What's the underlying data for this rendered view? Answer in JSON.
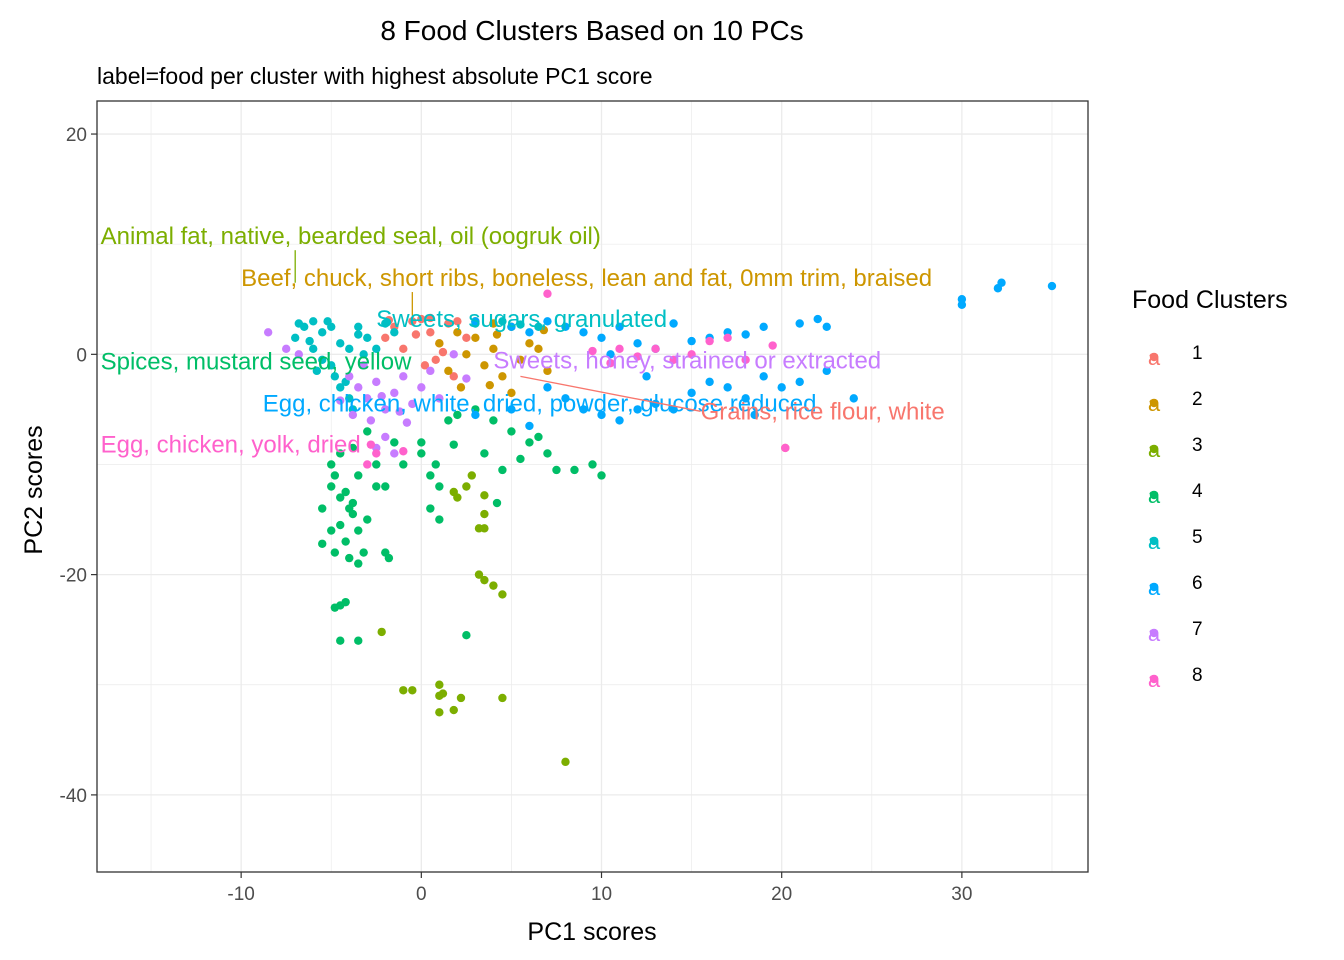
{
  "chart_data": {
    "type": "scatter",
    "title": "8 Food Clusters Based on 10 PCs",
    "subtitle": "label=food per cluster with highest absolute PC1 score",
    "xlabel": "PC1 scores",
    "ylabel": "PC2 scores",
    "xlim": [
      -18,
      37
    ],
    "ylim": [
      -47,
      23
    ],
    "x_ticks": [
      -10,
      0,
      10,
      20,
      30
    ],
    "y_ticks": [
      -40,
      -20,
      0,
      20
    ],
    "x_tick_labels": [
      "-10",
      "0",
      "10",
      "20",
      "30"
    ],
    "y_tick_labels": [
      "-40",
      "-20",
      "0",
      "20"
    ],
    "grid": true,
    "legend": {
      "title": "Food Clusters",
      "position": "right",
      "glyph": "a",
      "entries": [
        "1",
        "2",
        "3",
        "4",
        "5",
        "6",
        "7",
        "8"
      ]
    },
    "colors": {
      "1": "#F8766D",
      "2": "#CD9600",
      "3": "#7CAE00",
      "4": "#00BE67",
      "5": "#00BFC4",
      "6": "#00A9FF",
      "7": "#C77CFF",
      "8": "#FF61CC"
    },
    "series": [
      {
        "name": "1",
        "points": [
          [
            -1.5,
            2.5
          ],
          [
            -0.5,
            3.0
          ],
          [
            0.5,
            2.0
          ],
          [
            1.0,
            1.0
          ],
          [
            -2.0,
            1.5
          ],
          [
            0.0,
            3.2
          ],
          [
            1.5,
            2.8
          ],
          [
            -1.0,
            0.5
          ],
          [
            0.8,
            -0.5
          ],
          [
            2.0,
            3.0
          ],
          [
            -0.3,
            1.8
          ],
          [
            1.2,
            0.2
          ],
          [
            0.2,
            -1.0
          ],
          [
            -1.8,
            3.1
          ],
          [
            2.5,
            1.5
          ],
          [
            20.2,
            -8.5
          ],
          [
            1.8,
            -2.0
          ],
          [
            0.5,
            3.3
          ]
        ]
      },
      {
        "name": "2",
        "points": [
          [
            1.0,
            1.0
          ],
          [
            2.0,
            2.0
          ],
          [
            3.0,
            1.5
          ],
          [
            4.0,
            0.5
          ],
          [
            5.0,
            2.5
          ],
          [
            6.0,
            1.0
          ],
          [
            3.5,
            -1.0
          ],
          [
            4.5,
            -2.0
          ],
          [
            2.5,
            0.0
          ],
          [
            5.5,
            -0.5
          ],
          [
            6.5,
            0.5
          ],
          [
            3.0,
            3.0
          ],
          [
            4.0,
            2.8
          ],
          [
            1.5,
            -1.5
          ],
          [
            2.2,
            -3.0
          ],
          [
            7.0,
            -1.5
          ],
          [
            5.0,
            -3.5
          ],
          [
            4.2,
            1.8
          ],
          [
            6.8,
            2.2
          ],
          [
            3.8,
            -2.8
          ]
        ]
      },
      {
        "name": "3",
        "points": [
          [
            3.5,
            -14.5
          ],
          [
            3.2,
            -15.8
          ],
          [
            3.5,
            -15.8
          ],
          [
            3.5,
            -20.5
          ],
          [
            4.0,
            -21.0
          ],
          [
            4.5,
            -21.8
          ],
          [
            3.2,
            -20.0
          ],
          [
            2.5,
            -12.0
          ],
          [
            2.0,
            -13.0
          ],
          [
            1.8,
            -12.5
          ],
          [
            3.5,
            -12.8
          ],
          [
            -1.0,
            -30.5
          ],
          [
            -0.5,
            -30.5
          ],
          [
            1.0,
            -30.0
          ],
          [
            1.2,
            -30.8
          ],
          [
            2.2,
            -31.2
          ],
          [
            4.5,
            -31.2
          ],
          [
            1.0,
            -32.5
          ],
          [
            1.8,
            -32.3
          ],
          [
            8.0,
            -37.0
          ],
          [
            -2.2,
            -25.2
          ],
          [
            1.0,
            -31.0
          ],
          [
            2.8,
            -11.0
          ]
        ]
      },
      {
        "name": "4",
        "points": [
          [
            -4.5,
            -13.0
          ],
          [
            -4.2,
            -12.5
          ],
          [
            -4.0,
            -14.0
          ],
          [
            -3.8,
            -13.5
          ],
          [
            -4.5,
            -15.5
          ],
          [
            -5.0,
            -16.0
          ],
          [
            -4.2,
            -17.0
          ],
          [
            -5.5,
            -17.2
          ],
          [
            -4.8,
            -18.0
          ],
          [
            -4.0,
            -18.5
          ],
          [
            -3.5,
            -19.0
          ],
          [
            -4.5,
            -22.8
          ],
          [
            -4.8,
            -23.0
          ],
          [
            -4.2,
            -22.5
          ],
          [
            -4.5,
            -26.0
          ],
          [
            -3.5,
            -26.0
          ],
          [
            -3.2,
            -18.0
          ],
          [
            -2.0,
            -18.0
          ],
          [
            -1.8,
            -18.5
          ],
          [
            -3.8,
            -14.5
          ],
          [
            -3.5,
            -16.0
          ],
          [
            -5.0,
            -12.0
          ],
          [
            -4.8,
            -11.0
          ],
          [
            -5.0,
            -10.0
          ],
          [
            -4.5,
            -9.0
          ],
          [
            -3.8,
            -8.5
          ],
          [
            -3.0,
            -7.0
          ],
          [
            -2.5,
            -10.0
          ],
          [
            -2.0,
            -12.0
          ],
          [
            -1.0,
            -10.0
          ],
          [
            0.0,
            -9.0
          ],
          [
            0.5,
            -11.0
          ],
          [
            1.0,
            -12.0
          ],
          [
            0.5,
            -14.0
          ],
          [
            1.0,
            -15.0
          ],
          [
            0.0,
            -8.0
          ],
          [
            1.5,
            -6.0
          ],
          [
            2.0,
            -5.5
          ],
          [
            3.0,
            -5.0
          ],
          [
            4.0,
            -6.0
          ],
          [
            5.0,
            -7.0
          ],
          [
            6.0,
            -8.0
          ],
          [
            7.0,
            -9.0
          ],
          [
            6.5,
            -7.5
          ],
          [
            5.5,
            -9.5
          ],
          [
            4.5,
            -10.5
          ],
          [
            4.2,
            -13.5
          ],
          [
            2.5,
            -25.5
          ],
          [
            8.5,
            -10.5
          ],
          [
            9.5,
            -10.0
          ],
          [
            10.0,
            -11.0
          ],
          [
            7.5,
            -10.5
          ],
          [
            -1.5,
            -8.0
          ],
          [
            -2.5,
            -12.0
          ],
          [
            -3.5,
            -11.0
          ],
          [
            -5.5,
            -14.0
          ],
          [
            -3.0,
            -15.0
          ],
          [
            0.8,
            -10.0
          ],
          [
            1.8,
            -8.2
          ],
          [
            3.5,
            -9.0
          ]
        ]
      },
      {
        "name": "5",
        "points": [
          [
            -6.5,
            2.5
          ],
          [
            -6.0,
            3.0
          ],
          [
            -5.5,
            2.0
          ],
          [
            -5.0,
            2.5
          ],
          [
            -4.5,
            1.0
          ],
          [
            -4.0,
            0.5
          ],
          [
            -3.5,
            2.5
          ],
          [
            -3.0,
            1.5
          ],
          [
            -2.5,
            0.5
          ],
          [
            -6.0,
            0.5
          ],
          [
            -5.5,
            -0.5
          ],
          [
            -5.0,
            -1.0
          ],
          [
            -4.8,
            -2.0
          ],
          [
            -4.5,
            -3.0
          ],
          [
            -4.0,
            -4.0
          ],
          [
            -3.8,
            -5.0
          ],
          [
            -3.5,
            1.8
          ],
          [
            -6.2,
            1.2
          ],
          [
            -5.8,
            -1.5
          ],
          [
            -2.0,
            2.8
          ],
          [
            -1.5,
            2.0
          ],
          [
            -7.0,
            1.5
          ],
          [
            -6.8,
            2.8
          ],
          [
            -4.2,
            -2.5
          ],
          [
            -5.2,
            3.0
          ],
          [
            -3.2,
            0.0
          ],
          [
            3.0,
            2.8
          ],
          [
            4.5,
            3.0
          ],
          [
            5.5,
            2.7
          ],
          [
            6.5,
            2.5
          ]
        ]
      },
      {
        "name": "6",
        "points": [
          [
            3.0,
            3.0
          ],
          [
            5.0,
            2.5
          ],
          [
            6.0,
            2.0
          ],
          [
            7.0,
            3.0
          ],
          [
            8.0,
            2.5
          ],
          [
            9.0,
            2.0
          ],
          [
            10.0,
            1.5
          ],
          [
            11.0,
            2.5
          ],
          [
            12.0,
            1.0
          ],
          [
            13.0,
            0.5
          ],
          [
            14.0,
            2.8
          ],
          [
            15.0,
            1.2
          ],
          [
            16.0,
            1.5
          ],
          [
            17.0,
            2.0
          ],
          [
            18.0,
            1.8
          ],
          [
            19.0,
            2.5
          ],
          [
            21.0,
            2.8
          ],
          [
            22.0,
            3.2
          ],
          [
            22.5,
            2.5
          ],
          [
            30.0,
            4.5
          ],
          [
            30.0,
            5.0
          ],
          [
            32.0,
            6.0
          ],
          [
            32.2,
            6.5
          ],
          [
            35.0,
            6.2
          ],
          [
            7.0,
            -3.0
          ],
          [
            8.0,
            -4.0
          ],
          [
            9.0,
            -5.0
          ],
          [
            10.0,
            -5.5
          ],
          [
            11.0,
            -6.0
          ],
          [
            12.0,
            -5.0
          ],
          [
            13.0,
            -4.5
          ],
          [
            14.0,
            -5.0
          ],
          [
            15.0,
            -3.5
          ],
          [
            16.0,
            -2.5
          ],
          [
            17.0,
            -3.0
          ],
          [
            18.0,
            -4.0
          ],
          [
            19.0,
            -2.0
          ],
          [
            20.0,
            -3.0
          ],
          [
            21.0,
            -2.5
          ],
          [
            22.5,
            -1.5
          ],
          [
            24.0,
            -4.0
          ],
          [
            3.0,
            -5.5
          ],
          [
            5.0,
            -5.0
          ],
          [
            6.0,
            -6.5
          ],
          [
            10.5,
            0.0
          ],
          [
            12.5,
            -2.0
          ],
          [
            18.5,
            -5.5
          ]
        ]
      },
      {
        "name": "7",
        "points": [
          [
            -4.0,
            -2.0
          ],
          [
            -3.5,
            -3.0
          ],
          [
            -3.0,
            -4.0
          ],
          [
            -2.5,
            -2.5
          ],
          [
            -2.0,
            -5.0
          ],
          [
            -1.5,
            -3.5
          ],
          [
            -1.0,
            -2.0
          ],
          [
            -0.5,
            -4.5
          ],
          [
            0.0,
            -3.0
          ],
          [
            0.5,
            -1.5
          ],
          [
            1.0,
            -4.0
          ],
          [
            -3.8,
            -5.5
          ],
          [
            -2.8,
            -6.0
          ],
          [
            -2.2,
            -3.8
          ],
          [
            -1.2,
            -5.2
          ],
          [
            -3.2,
            -1.0
          ],
          [
            -2.0,
            -7.5
          ],
          [
            -4.5,
            -4.2
          ],
          [
            -0.8,
            -6.2
          ],
          [
            -8.5,
            2.0
          ],
          [
            -7.5,
            0.5
          ],
          [
            -6.8,
            0.0
          ],
          [
            -2.5,
            -8.5
          ],
          [
            -1.5,
            -9.0
          ],
          [
            2.5,
            -2.2
          ],
          [
            1.8,
            0.0
          ]
        ]
      },
      {
        "name": "8",
        "points": [
          [
            7.0,
            5.5
          ],
          [
            11.0,
            0.5
          ],
          [
            12.0,
            -0.2
          ],
          [
            13.0,
            0.5
          ],
          [
            14.0,
            -0.5
          ],
          [
            15.0,
            0.0
          ],
          [
            16.0,
            1.2
          ],
          [
            17.0,
            1.5
          ],
          [
            18.0,
            -0.5
          ],
          [
            19.5,
            0.8
          ],
          [
            20.2,
            -8.5
          ],
          [
            -3.0,
            -10.0
          ],
          [
            -2.5,
            -9.0
          ],
          [
            -1.0,
            -8.8
          ],
          [
            -2.8,
            -8.2
          ],
          [
            9.5,
            0.3
          ],
          [
            10.5,
            -0.8
          ]
        ]
      }
    ],
    "annotations": [
      {
        "text": "Animal fat, native, bearded seal, oil (oogruk oil)",
        "cluster": "3",
        "label_at": [
          -17.8,
          10.0
        ],
        "point": [
          -7.0,
          6.5
        ]
      },
      {
        "text": "Beef, chuck, short ribs, boneless, lean and fat, 0mm trim, braised",
        "cluster": "2",
        "label_at": [
          -10.0,
          6.2
        ],
        "point": [
          -0.5,
          3.5
        ]
      },
      {
        "text": "Sweets, sugars, granulated",
        "cluster": "5",
        "label_at": [
          -2.5,
          2.5
        ],
        "point": null
      },
      {
        "text": "Spices, mustard seed, yellow",
        "cluster": "4",
        "label_at": [
          -17.8,
          -1.4
        ],
        "point": null
      },
      {
        "text": "Sweets, honey, strained or extracted",
        "cluster": "7",
        "label_at": [
          4.0,
          -1.3
        ],
        "point": null
      },
      {
        "text": "Egg, chicken, white, dried, powder, glucose reduced",
        "cluster": "6",
        "label_at": [
          -8.8,
          -5.2
        ],
        "point": null
      },
      {
        "text": "Grains, rice flour, white",
        "cluster": "1",
        "label_at": [
          15.5,
          -5.9
        ],
        "point": [
          5.5,
          -2.0
        ]
      },
      {
        "text": "Egg, chicken, yolk, dried",
        "cluster": "8",
        "label_at": [
          -17.8,
          -8.9
        ],
        "point": null
      }
    ]
  }
}
